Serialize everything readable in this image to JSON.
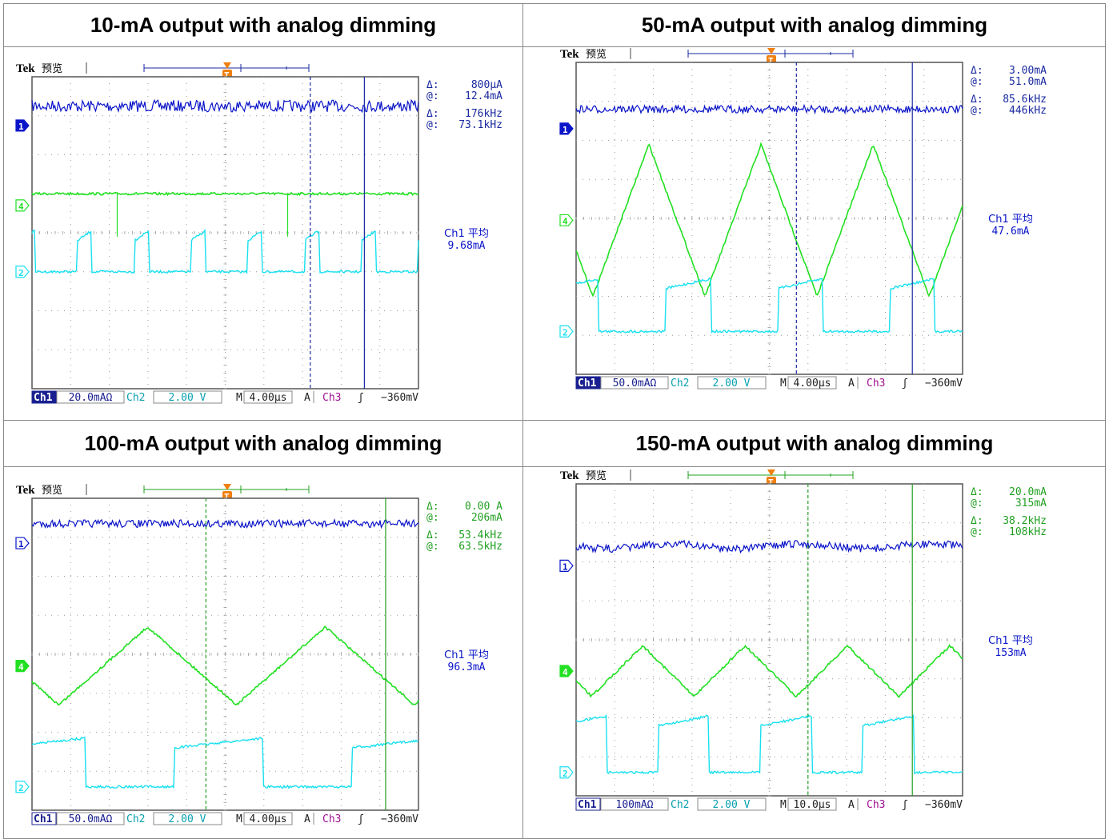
{
  "panels": [
    {
      "title": "10-mA output with analog dimming",
      "brand": "Tek",
      "mode": "预览",
      "cursor_type": "current",
      "readouts": {
        "cur_delta_label": "Δ:",
        "cur_delta": "800µA",
        "cur_at_label": "@:",
        "cur_at": "12.4mA",
        "freq_delta_label": "Δ:",
        "freq_delta": "176kHz",
        "freq_at_label": "@:",
        "freq_at": "73.1kHz"
      },
      "measurement": {
        "label": "Ch1 平均",
        "value": "9.68mA"
      },
      "status": {
        "ch1": "Ch1",
        "ch1_scale": "20.0mAΩ",
        "ch2": "Ch2",
        "ch2_scale": "2.00 V",
        "m": "M",
        "timebase": "4.00µs",
        "a": "A",
        "trig_src": "Ch3",
        "trig_slope": "ʃ",
        "trig_level": "−360mV"
      },
      "markers": {
        "ch1": "1",
        "ch4": "4",
        "ch2": "2",
        "trigger": "T"
      }
    },
    {
      "title": "50-mA output with analog dimming",
      "brand": "Tek",
      "mode": "预览",
      "cursor_type": "current",
      "readouts": {
        "cur_delta_label": "Δ:",
        "cur_delta": "3.00mA",
        "cur_at_label": "@:",
        "cur_at": "51.0mA",
        "freq_delta_label": "Δ:",
        "freq_delta": "85.6kHz",
        "freq_at_label": "@:",
        "freq_at": "446kHz"
      },
      "measurement": {
        "label": "Ch1 平均",
        "value": "47.6mA"
      },
      "status": {
        "ch1": "Ch1",
        "ch1_scale": "50.0mAΩ",
        "ch2": "Ch2",
        "ch2_scale": "2.00 V",
        "m": "M",
        "timebase": "4.00µs",
        "a": "A",
        "trig_src": "Ch3",
        "trig_slope": "ʃ",
        "trig_level": "−360mV"
      },
      "markers": {
        "ch1": "1",
        "ch4": "4",
        "ch2": "2",
        "trigger": "T"
      }
    },
    {
      "title": "100-mA output  with analog dimming",
      "brand": "Tek",
      "mode": "预览",
      "cursor_type": "green",
      "readouts": {
        "cur_delta_label": "Δ:",
        "cur_delta": "0.00 A",
        "cur_at_label": "@:",
        "cur_at": "206mA",
        "freq_delta_label": "Δ:",
        "freq_delta": "53.4kHz",
        "freq_at_label": "@:",
        "freq_at": "63.5kHz"
      },
      "measurement": {
        "label": "Ch1 平均",
        "value": "96.3mA"
      },
      "status": {
        "ch1": "Ch1",
        "ch1_scale": "50.0mAΩ",
        "ch2": "Ch2",
        "ch2_scale": "2.00 V",
        "m": "M",
        "timebase": "4.00µs",
        "a": "A",
        "trig_src": "Ch3",
        "trig_slope": "ʃ",
        "trig_level": "−360mV"
      },
      "markers": {
        "ch1": "1",
        "ch4": "4",
        "ch2": "2",
        "trigger": "T"
      }
    },
    {
      "title": "150-mA output with analog dimming",
      "brand": "Tek",
      "mode": "预览",
      "cursor_type": "green",
      "readouts": {
        "cur_delta_label": "Δ:",
        "cur_delta": "20.0mA",
        "cur_at_label": "@:",
        "cur_at": "315mA",
        "freq_delta_label": "Δ:",
        "freq_delta": "38.2kHz",
        "freq_at_label": "@:",
        "freq_at": "108kHz"
      },
      "measurement": {
        "label": "Ch1 平均",
        "value": "153mA"
      },
      "status": {
        "ch1": "Ch1",
        "ch1_scale": "100mAΩ",
        "ch2": "Ch2",
        "ch2_scale": "2.00 V",
        "m": "M",
        "timebase": "10.0µs",
        "a": "A",
        "trig_src": "Ch3",
        "trig_slope": "ʃ",
        "trig_level": "−360mV"
      },
      "markers": {
        "ch1": "1",
        "ch4": "4",
        "ch2": "2",
        "trigger": "T"
      }
    }
  ],
  "colors": {
    "ch1": "#0a14c8",
    "ch4": "#22e022",
    "ch2": "#18e0f0",
    "cursor_blue": "#1a2aa0",
    "cursor_green": "#22a022",
    "trigger": "#f08010",
    "grid": "#9a9a9a",
    "status_bg": "#1a2090"
  },
  "chart_data": [
    {
      "type": "line",
      "title": "10-mA output with analog dimming",
      "xlabel": "",
      "ylabel": "",
      "timebase_per_div": "4.00µs",
      "x_divisions": 10,
      "y_divisions": 8,
      "grid": true,
      "series": [
        {
          "name": "Ch1",
          "shape": "noisy-flat",
          "level_div": 0.75,
          "noise_div": 0.15
        },
        {
          "name": "Ch4",
          "shape": "triangle-ripple",
          "period_div": 1.47,
          "min_div": 3.0,
          "max_div": 3.6,
          "spikes": true
        },
        {
          "name": "Ch2",
          "shape": "pulse",
          "period_div": 1.47,
          "duty": 0.25,
          "low_div": 5.0,
          "high_div": 4.2
        }
      ],
      "measurement": {
        "Ch1 average": "9.68mA",
        "cursor delta current": "800µA",
        "cursor current": "12.4mA",
        "cursor delta freq": "176kHz",
        "cursor freq": "73.1kHz"
      }
    },
    {
      "type": "line",
      "title": "50-mA output with analog dimming",
      "xlabel": "",
      "ylabel": "",
      "timebase_per_div": "4.00µs",
      "x_divisions": 10,
      "y_divisions": 8,
      "grid": true,
      "series": [
        {
          "name": "Ch1",
          "shape": "noisy-flat",
          "level_div": 1.2,
          "noise_div": 0.1
        },
        {
          "name": "Ch4",
          "shape": "triangle",
          "period_div": 2.9,
          "min_div": 6.0,
          "max_div": 2.1
        },
        {
          "name": "Ch2",
          "shape": "pulse",
          "period_div": 2.9,
          "duty": 0.4,
          "low_div": 6.9,
          "high_div": 5.8
        }
      ],
      "measurement": {
        "Ch1 average": "47.6mA",
        "cursor delta current": "3.00mA",
        "cursor current": "51.0mA",
        "cursor delta freq": "85.6kHz",
        "cursor freq": "446kHz"
      }
    },
    {
      "type": "line",
      "title": "100-mA output  with analog dimming",
      "xlabel": "",
      "ylabel": "",
      "timebase_per_div": "4.00µs",
      "x_divisions": 10,
      "y_divisions": 8,
      "grid": true,
      "series": [
        {
          "name": "Ch1",
          "shape": "noisy-flat",
          "level_div": 0.65,
          "noise_div": 0.1
        },
        {
          "name": "Ch4",
          "shape": "triangle",
          "period_div": 4.6,
          "min_div": 5.3,
          "max_div": 3.3
        },
        {
          "name": "Ch2",
          "shape": "pulse",
          "period_div": 4.6,
          "duty": 0.5,
          "low_div": 7.4,
          "high_div": 6.4
        }
      ],
      "measurement": {
        "Ch1 average": "96.3mA",
        "cursor delta current": "0.00 A",
        "cursor current": "206mA",
        "cursor delta freq": "53.4kHz",
        "cursor freq": "63.5kHz"
      }
    },
    {
      "type": "line",
      "title": "150-mA output with analog dimming",
      "xlabel": "",
      "ylabel": "",
      "timebase_per_div": "10.0µs",
      "x_divisions": 10,
      "y_divisions": 8,
      "grid": true,
      "series": [
        {
          "name": "Ch1",
          "shape": "noisy-wave",
          "level_div": 1.6,
          "noise_div": 0.1
        },
        {
          "name": "Ch4",
          "shape": "triangle",
          "period_div": 2.65,
          "min_div": 5.45,
          "max_div": 4.15
        },
        {
          "name": "Ch2",
          "shape": "pulse",
          "period_div": 2.65,
          "duty": 0.5,
          "low_div": 7.4,
          "high_div": 6.2
        }
      ],
      "measurement": {
        "Ch1 average": "153mA",
        "cursor delta current": "20.0mA",
        "cursor current": "315mA",
        "cursor delta freq": "38.2kHz",
        "cursor freq": "108kHz"
      }
    }
  ]
}
